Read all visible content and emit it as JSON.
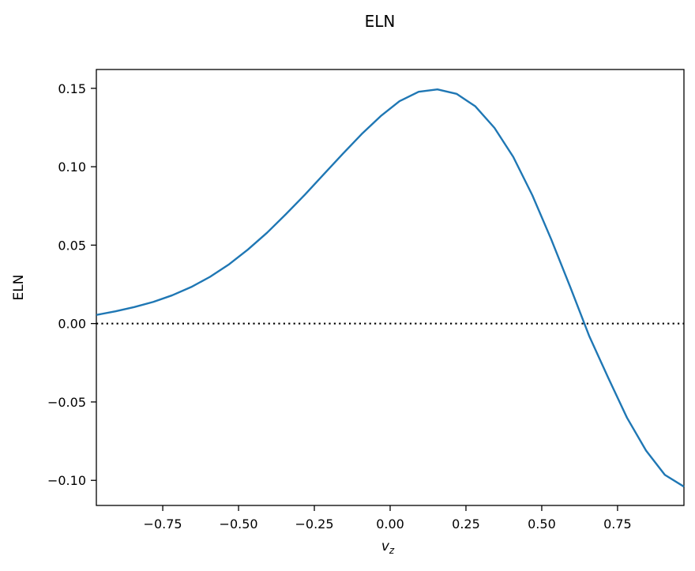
{
  "chart_data": {
    "type": "line",
    "title": "ELN",
    "xlabel_main": "v",
    "xlabel_sub": "z",
    "ylabel": "ELN",
    "xlim": [
      -0.969,
      0.969
    ],
    "ylim": [
      -0.116,
      0.162
    ],
    "xticks": [
      -0.75,
      -0.5,
      -0.25,
      0.0,
      0.25,
      0.5,
      0.75
    ],
    "xtick_labels": [
      "−0.75",
      "−0.50",
      "−0.25",
      "0.00",
      "0.25",
      "0.50",
      "0.75"
    ],
    "yticks": [
      -0.1,
      -0.05,
      0.0,
      0.05,
      0.1,
      0.15
    ],
    "ytick_labels": [
      "−0.10",
      "−0.05",
      "0.00",
      "0.05",
      "0.10",
      "0.15"
    ],
    "grid": false,
    "series": [
      {
        "color": "#1f77b4",
        "x": [
          -0.969,
          -0.906,
          -0.844,
          -0.781,
          -0.719,
          -0.656,
          -0.594,
          -0.531,
          -0.469,
          -0.406,
          -0.344,
          -0.281,
          -0.219,
          -0.156,
          -0.094,
          -0.031,
          0.031,
          0.094,
          0.156,
          0.219,
          0.281,
          0.344,
          0.406,
          0.469,
          0.531,
          0.594,
          0.656,
          0.719,
          0.781,
          0.844,
          0.906,
          0.969
        ],
        "y": [
          0.0055,
          0.0078,
          0.0105,
          0.0138,
          0.018,
          0.0233,
          0.0298,
          0.0378,
          0.0472,
          0.0579,
          0.0697,
          0.0822,
          0.0952,
          0.1083,
          0.1208,
          0.1323,
          0.1418,
          0.1478,
          0.1493,
          0.1465,
          0.1385,
          0.1248,
          0.1063,
          0.0818,
          0.0538,
          0.0233,
          -0.0077,
          -0.0345,
          -0.06,
          -0.081,
          -0.0965,
          -0.104
        ]
      }
    ],
    "reference_lines": [
      {
        "y": 0.0,
        "style": "dotted",
        "color": "#000000"
      }
    ]
  }
}
